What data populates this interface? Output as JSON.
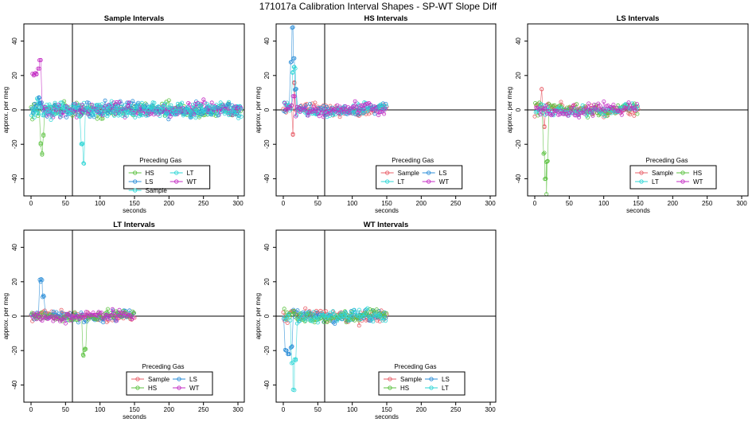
{
  "figure": {
    "title": "171017a   Calibration Interval Shapes - SP-WT Slope Diff",
    "legend_title": "Preceding Gas",
    "xlabel": "seconds",
    "ylabel": "approx. per meg"
  },
  "colors": {
    "Sample": "#e8606a",
    "HS": "#5cc241",
    "LS": "#2e8fd8",
    "LT": "#2ed6d6",
    "WT": "#c42ec4",
    "axes": "#000000"
  },
  "chart_data": [
    {
      "type": "scatter",
      "title": "Sample Intervals",
      "xlabel": "seconds",
      "ylabel": "approx. per meg",
      "xlim": [
        0,
        300
      ],
      "ylim": [
        -50,
        50
      ],
      "xticks": [
        0,
        50,
        100,
        150,
        200,
        250,
        300
      ],
      "yticks": [
        -40,
        -20,
        0,
        20,
        40
      ],
      "vline": 60,
      "hline": 0,
      "legend_position": "bottom-center",
      "legend_columns": 2,
      "x_range_of_points": [
        0,
        305
      ],
      "noise_amplitude": 6,
      "series": [
        {
          "name": "HS",
          "color_key": "HS",
          "spike": [
            [
              14,
              -20
            ],
            [
              16,
              -26
            ],
            [
              18,
              -15
            ]
          ]
        },
        {
          "name": "LT",
          "color_key": "LT",
          "spike": [
            [
              10,
              6
            ],
            [
              12,
              4
            ]
          ]
        },
        {
          "name": "LS",
          "color_key": "LS",
          "spike": [
            [
              12,
              7
            ],
            [
              14,
              4
            ]
          ]
        },
        {
          "name": "WT",
          "color_key": "WT",
          "spike": [
            [
              4,
              20
            ],
            [
              8,
              21
            ],
            [
              12,
              24
            ],
            [
              14,
              29
            ]
          ]
        },
        {
          "name": "Sample",
          "color_key": "LT",
          "spike": [
            [
              76,
              -31
            ],
            [
              74,
              -20
            ]
          ]
        }
      ]
    },
    {
      "type": "scatter",
      "title": "HS Intervals",
      "xlabel": "seconds",
      "ylabel": "approx. per meg",
      "xlim": [
        0,
        300
      ],
      "ylim": [
        -50,
        50
      ],
      "xticks": [
        0,
        50,
        100,
        150,
        200,
        250,
        300
      ],
      "yticks": [
        -40,
        -20,
        0,
        20,
        40
      ],
      "vline": 60,
      "hline": 0,
      "legend_position": "bottom-center",
      "legend_columns": 2,
      "x_range_of_points": [
        0,
        150
      ],
      "noise_amplitude": 5,
      "series": [
        {
          "name": "Sample",
          "color_key": "Sample",
          "spike": [
            [
              14,
              -14
            ],
            [
              16,
              16
            ]
          ]
        },
        {
          "name": "LS",
          "color_key": "LS",
          "spike": [
            [
              12,
              28
            ],
            [
              14,
              48
            ],
            [
              16,
              30
            ],
            [
              18,
              12
            ]
          ]
        },
        {
          "name": "LT",
          "color_key": "LT",
          "spike": [
            [
              14,
              22
            ],
            [
              16,
              25
            ]
          ]
        },
        {
          "name": "WT",
          "color_key": "WT",
          "spike": [
            [
              16,
              8
            ]
          ]
        }
      ]
    },
    {
      "type": "scatter",
      "title": "LS Intervals",
      "xlabel": "seconds",
      "ylabel": "approx. per meg",
      "xlim": [
        0,
        300
      ],
      "ylim": [
        -50,
        50
      ],
      "xticks": [
        0,
        50,
        100,
        150,
        200,
        250,
        300
      ],
      "yticks": [
        -40,
        -20,
        0,
        20,
        40
      ],
      "vline": null,
      "hline": 0,
      "legend_position": "bottom-right",
      "legend_columns": 2,
      "x_range_of_points": [
        0,
        150
      ],
      "noise_amplitude": 5,
      "series": [
        {
          "name": "Sample",
          "color_key": "Sample",
          "spike": [
            [
              10,
              12
            ],
            [
              14,
              -10
            ]
          ]
        },
        {
          "name": "HS",
          "color_key": "HS",
          "spike": [
            [
              14,
              -25
            ],
            [
              16,
              -40
            ],
            [
              17,
              -49
            ],
            [
              18,
              -30
            ]
          ]
        },
        {
          "name": "LT",
          "color_key": "LT",
          "spike": []
        },
        {
          "name": "WT",
          "color_key": "WT",
          "spike": []
        }
      ]
    },
    {
      "type": "scatter",
      "title": "LT Intervals",
      "xlabel": "seconds",
      "ylabel": "approx. per meg",
      "xlim": [
        0,
        300
      ],
      "ylim": [
        -50,
        50
      ],
      "xticks": [
        0,
        50,
        100,
        150,
        200,
        250,
        300
      ],
      "yticks": [
        -40,
        -20,
        0,
        20,
        40
      ],
      "vline": 60,
      "hline": 0,
      "legend_position": "bottom-right",
      "legend_columns": 2,
      "x_range_of_points": [
        0,
        150
      ],
      "noise_amplitude": 4,
      "series": [
        {
          "name": "Sample",
          "color_key": "Sample",
          "spike": []
        },
        {
          "name": "LS",
          "color_key": "LS",
          "spike": [
            [
              14,
              20
            ],
            [
              16,
              21
            ],
            [
              18,
              12
            ]
          ]
        },
        {
          "name": "HS",
          "color_key": "HS",
          "spike": [
            [
              76,
              -23
            ],
            [
              78,
              -19
            ]
          ]
        },
        {
          "name": "WT",
          "color_key": "WT",
          "spike": []
        }
      ]
    },
    {
      "type": "scatter",
      "title": "WT Intervals",
      "xlabel": "seconds",
      "ylabel": "approx. per meg",
      "xlim": [
        0,
        300
      ],
      "ylim": [
        -50,
        50
      ],
      "xticks": [
        0,
        50,
        100,
        150,
        200,
        250,
        300
      ],
      "yticks": [
        -40,
        -20,
        0,
        20,
        40
      ],
      "vline": 60,
      "hline": 0,
      "legend_position": "bottom-right",
      "legend_columns": 2,
      "x_range_of_points": [
        0,
        150
      ],
      "noise_amplitude": 5,
      "series": [
        {
          "name": "Sample",
          "color_key": "Sample",
          "spike": []
        },
        {
          "name": "LS",
          "color_key": "LS",
          "spike": [
            [
              4,
              -20
            ],
            [
              8,
              -22
            ],
            [
              12,
              -18
            ]
          ]
        },
        {
          "name": "HS",
          "color_key": "HS",
          "spike": []
        },
        {
          "name": "LT",
          "color_key": "LT",
          "spike": [
            [
              14,
              -27
            ],
            [
              16,
              -43
            ],
            [
              18,
              -25
            ]
          ]
        }
      ]
    }
  ]
}
